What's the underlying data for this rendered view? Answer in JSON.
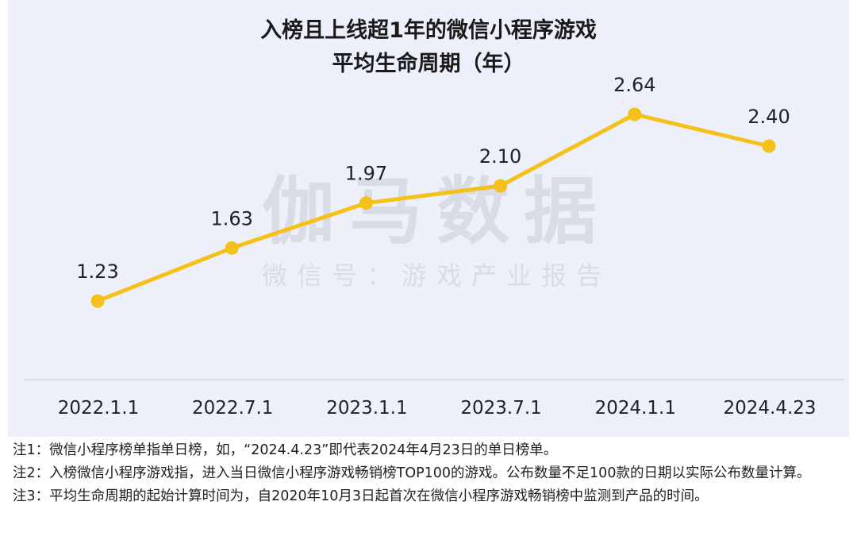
{
  "title_lines": [
    "入榜且上线超1年的微信小程序游戏",
    "平均生命周期（年）"
  ],
  "watermark": {
    "main": "伽马数据",
    "sub": "微信号：游戏产业报告"
  },
  "colors": {
    "line": "#f5c018",
    "panel": "#edf0fa",
    "watermark": "#d9dce6"
  },
  "chart_data": {
    "type": "line",
    "title": "入榜且上线超1年的微信小程序游戏平均生命周期（年）",
    "categories": [
      "2022.1.1",
      "2022.7.1",
      "2023.1.1",
      "2023.7.1",
      "2024.1.1",
      "2024.4.23"
    ],
    "series": [
      {
        "values": [
          1.23,
          1.63,
          1.97,
          2.1,
          2.64,
          2.4
        ]
      }
    ],
    "data_labels": [
      "1.23",
      "1.63",
      "1.97",
      "2.10",
      "2.64",
      "2.40"
    ],
    "ylim": [
      0,
      3
    ],
    "grid": false,
    "xlabel": "",
    "ylabel": ""
  },
  "notes": [
    "注1：微信小程序榜单指单日榜，如，“2024.4.23”即代表2024年4月23日的单日榜单。",
    "注2：入榜微信小程序游戏指，进入当日微信小程序游戏畅销榜TOP100的游戏。公布数量不足100款的日期以实际公布数量计算。",
    "注3：平均生命周期的起始计算时间为，自2020年10月3日起首次在微信小程序游戏畅销榜中监测到产品的时间。"
  ]
}
